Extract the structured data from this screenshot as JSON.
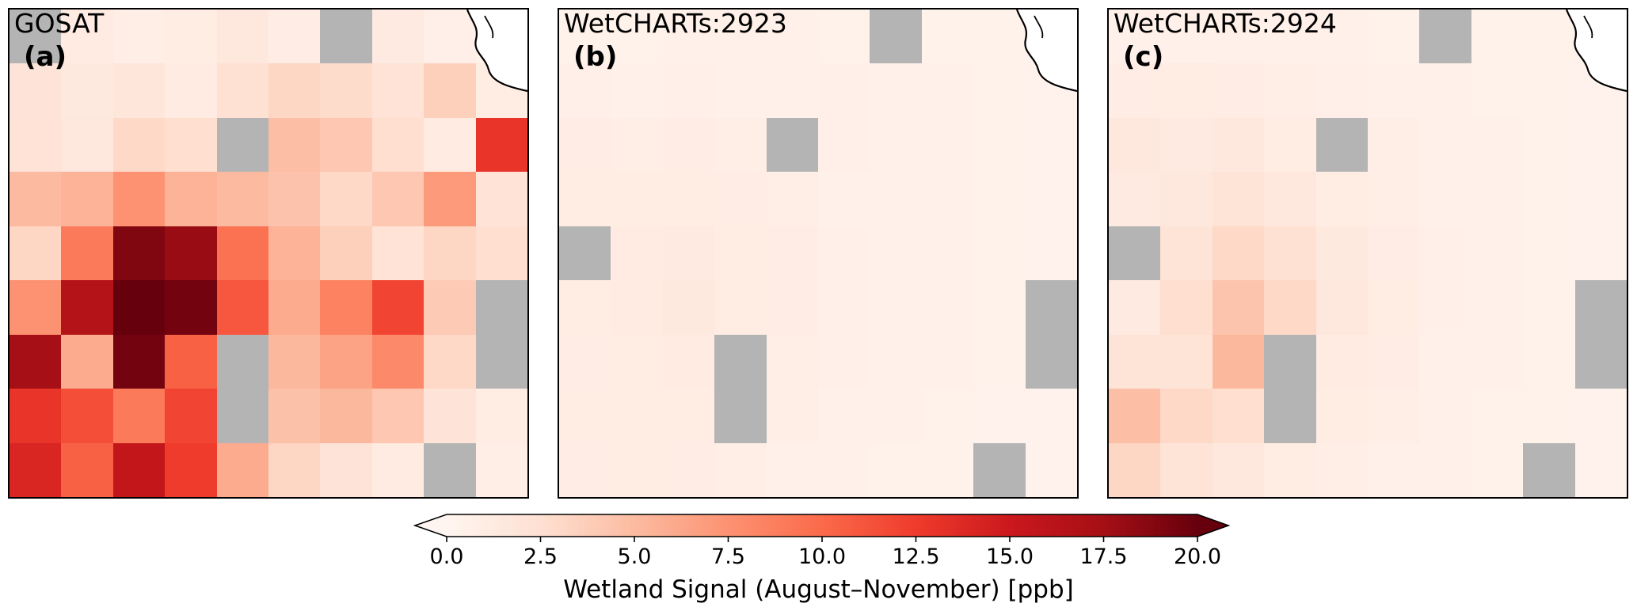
{
  "chart_data": {
    "type": "heatmap",
    "grid_shape": {
      "rows": 9,
      "cols": 10
    },
    "missing_color": "#b4b4b4",
    "colorbar": {
      "label": "Wetland Signal (August–November) [ppb]",
      "ticks": [
        "0.0",
        "2.5",
        "5.0",
        "7.5",
        "10.0",
        "12.5",
        "15.0",
        "17.5",
        "20.0"
      ],
      "vmin": 0,
      "vmax": 20,
      "colormap": "Reds",
      "colormap_stops": [
        "#fff5f0",
        "#fee0d2",
        "#fcbba1",
        "#fc9272",
        "#fb6a4a",
        "#ef3b2c",
        "#cb181d",
        "#a50f15",
        "#67000d"
      ],
      "extend": "both"
    },
    "panels": [
      {
        "letter": "(a)",
        "title": "GOSAT",
        "values": [
          [
            null,
            1.2,
            0.8,
            1.0,
            1.6,
            0.9,
            null,
            1.3,
            0.7,
            0.4
          ],
          [
            2.0,
            1.4,
            1.8,
            1.2,
            2.4,
            3.2,
            2.8,
            2.2,
            3.6,
            1.0
          ],
          [
            2.2,
            1.6,
            3.0,
            2.6,
            null,
            4.8,
            4.2,
            2.6,
            1.2,
            13.0
          ],
          [
            5.0,
            5.5,
            7.5,
            5.5,
            5.0,
            4.5,
            3.0,
            4.2,
            7.0,
            2.2
          ],
          [
            3.2,
            9.0,
            19.0,
            18.0,
            9.5,
            5.5,
            3.6,
            2.2,
            3.2,
            2.6
          ],
          [
            7.5,
            16.5,
            20.0,
            19.5,
            11.0,
            6.0,
            8.5,
            12.0,
            4.0,
            null
          ],
          [
            17.5,
            6.0,
            19.5,
            10.5,
            null,
            5.2,
            6.5,
            8.0,
            3.0,
            null
          ],
          [
            13.0,
            11.5,
            9.0,
            12.0,
            null,
            4.6,
            5.2,
            4.2,
            2.0,
            1.0
          ],
          [
            14.0,
            10.5,
            15.5,
            12.5,
            6.0,
            3.2,
            2.0,
            1.2,
            null,
            0.8
          ]
        ]
      },
      {
        "letter": "(b)",
        "title": "WetCHARTs:2923",
        "values": [
          [
            0.4,
            0.4,
            0.5,
            0.5,
            0.5,
            0.4,
            null,
            0.4,
            0.4,
            0.3
          ],
          [
            0.7,
            0.6,
            0.7,
            0.6,
            0.6,
            0.7,
            0.5,
            0.5,
            0.4,
            0.3
          ],
          [
            0.9,
            0.8,
            0.9,
            0.8,
            null,
            0.7,
            0.6,
            0.5,
            0.4,
            0.3
          ],
          [
            1.1,
            1.0,
            1.1,
            0.9,
            0.8,
            0.6,
            0.5,
            0.5,
            0.4,
            0.3
          ],
          [
            null,
            1.2,
            1.3,
            1.1,
            0.9,
            0.7,
            0.6,
            0.5,
            0.4,
            0.3
          ],
          [
            1.0,
            1.2,
            1.4,
            1.1,
            0.9,
            0.7,
            0.6,
            0.5,
            0.4,
            null
          ],
          [
            0.9,
            1.1,
            1.2,
            null,
            0.8,
            0.7,
            0.5,
            0.5,
            0.4,
            null
          ],
          [
            1.0,
            1.1,
            1.0,
            null,
            0.8,
            0.6,
            0.5,
            0.4,
            0.3,
            0.3
          ],
          [
            0.9,
            1.0,
            0.9,
            0.8,
            0.6,
            0.5,
            0.4,
            0.4,
            null,
            0.3
          ]
        ]
      },
      {
        "letter": "(c)",
        "title": "WetCHARTs:2924",
        "values": [
          [
            0.5,
            0.5,
            0.6,
            0.5,
            0.5,
            0.4,
            null,
            0.4,
            0.4,
            0.3
          ],
          [
            0.9,
            1.1,
            0.9,
            0.8,
            0.7,
            0.6,
            0.5,
            0.4,
            0.4,
            0.3
          ],
          [
            1.6,
            1.3,
            1.6,
            1.1,
            null,
            0.8,
            0.6,
            0.5,
            0.4,
            0.3
          ],
          [
            1.3,
            1.6,
            2.1,
            1.6,
            1.0,
            0.8,
            0.6,
            0.5,
            0.4,
            0.3
          ],
          [
            null,
            2.1,
            3.0,
            2.4,
            1.4,
            0.9,
            0.7,
            0.5,
            0.4,
            0.3
          ],
          [
            1.3,
            2.6,
            4.4,
            3.0,
            1.6,
            1.0,
            0.7,
            0.5,
            0.4,
            null
          ],
          [
            2.1,
            2.1,
            5.2,
            null,
            1.2,
            0.9,
            0.6,
            0.5,
            0.4,
            null
          ],
          [
            4.8,
            3.0,
            2.6,
            null,
            1.0,
            0.8,
            0.6,
            0.4,
            0.4,
            0.3
          ],
          [
            3.2,
            2.1,
            1.6,
            1.0,
            0.8,
            0.6,
            0.5,
            0.4,
            null,
            0.3
          ]
        ]
      }
    ]
  }
}
